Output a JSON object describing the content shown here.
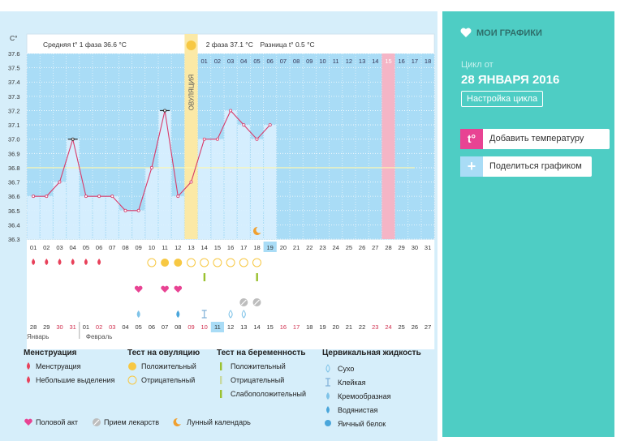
{
  "chart_data": {
    "type": "line",
    "title": "",
    "unit_label": "C°",
    "phase1_avg": "Средняя t° 1 фаза 36.6 °C",
    "phase2_avg": "2 фаза 37.1 °C",
    "diff": "Разница t° 0.5 °C",
    "ovulation_label": "ОВУЛЯЦИЯ",
    "ylim": [
      36.3,
      37.6
    ],
    "yticks": [
      "37.6",
      "37.5",
      "37.4",
      "37.3",
      "37.2",
      "37.1",
      "37.0",
      "36.9",
      "36.8",
      "36.7",
      "36.6",
      "36.5",
      "36.4",
      "36.3"
    ],
    "coverline": 36.8,
    "ovulation_day": 13,
    "highlight_day": 19,
    "period_expected_day": 28,
    "days": [
      "01",
      "02",
      "03",
      "04",
      "05",
      "06",
      "07",
      "08",
      "09",
      "10",
      "11",
      "12",
      "13",
      "14",
      "15",
      "16",
      "17",
      "18",
      "19",
      "20",
      "21",
      "22",
      "23",
      "24",
      "25",
      "26",
      "27",
      "28",
      "29",
      "30",
      "31"
    ],
    "phase2_days": [
      "01",
      "02",
      "03",
      "04",
      "05",
      "06",
      "07",
      "08",
      "09",
      "10",
      "11",
      "12",
      "13",
      "14",
      "15",
      "16",
      "17",
      "18"
    ],
    "temperatures": [
      36.6,
      36.6,
      36.7,
      37.0,
      36.6,
      36.6,
      36.6,
      36.5,
      36.5,
      36.8,
      37.2,
      36.6,
      36.7,
      37.0,
      37.0,
      37.2,
      37.1,
      37.0,
      37.1
    ],
    "marked_points": [
      4,
      11
    ],
    "dates": [
      "28",
      "29",
      "30",
      "31",
      "01",
      "02",
      "03",
      "04",
      "05",
      "06",
      "07",
      "08",
      "09",
      "10",
      "11",
      "12",
      "13",
      "14",
      "15",
      "16",
      "17",
      "18",
      "19",
      "20",
      "21",
      "22",
      "23",
      "24",
      "25",
      "26",
      "27"
    ],
    "red_dates": [
      3,
      4,
      6,
      7,
      13,
      14,
      20,
      21,
      27,
      28
    ],
    "month_jan": "Январь",
    "month_feb": "Февраль",
    "menstruation_days": [
      1,
      2,
      3,
      4,
      5,
      6
    ],
    "ovulation_positive_days": [
      11,
      12
    ],
    "ovulation_negative_days": [
      10,
      13,
      14,
      15,
      16,
      17,
      18
    ],
    "pregnancy_test_days": [
      14,
      18
    ],
    "intercourse_days": [
      9,
      11,
      12
    ],
    "medication_days": [
      17,
      18
    ],
    "lunar_day": 18,
    "fluid": [
      {
        "day": 9,
        "type": "creamy"
      },
      {
        "day": 12,
        "type": "watery"
      },
      {
        "day": 14,
        "type": "sticky"
      },
      {
        "day": 16,
        "type": "dry"
      },
      {
        "day": 17,
        "type": "dry"
      }
    ]
  },
  "sidebar": {
    "title": "МОИ ГРАФИКИ",
    "cycle_label": "Цикл от",
    "cycle_date": "28 ЯНВАРЯ 2016",
    "settings_button": "Настройка цикла",
    "add_temp_button": "Добавить температуру",
    "share_button": "Поделиться графиком",
    "add_temp_icon": "t°"
  },
  "legend": {
    "menstruation": {
      "title": "Менструация",
      "items": [
        "Менструация",
        "Небольшие выделения"
      ]
    },
    "ovulation_test": {
      "title": "Тест на овуляцию",
      "items": [
        "Положительный",
        "Отрицательный"
      ]
    },
    "pregnancy_test": {
      "title": "Тест на беременность",
      "items": [
        "Положительный",
        "Отрицательный",
        "Слабоположительный"
      ]
    },
    "cervical_fluid": {
      "title": "Цервикальная жидкость",
      "items": [
        "Сухо",
        "Клейкая",
        "Кремообразная",
        "Водянистая",
        "Яичный белок"
      ]
    },
    "extra": [
      "Половой акт",
      "Прием лекарств",
      "Лунный календарь"
    ]
  },
  "colors": {
    "panel": "#4ecdc4",
    "chart_bg": "#a9dcf6",
    "bar": "#d9efff",
    "ovulation": "#fbe9a6",
    "period_expected": "#f4b5c6",
    "line": "#d83b6a",
    "drop": "#e8415a",
    "heart": "#e84393",
    "pos_test": "#f7c843"
  }
}
